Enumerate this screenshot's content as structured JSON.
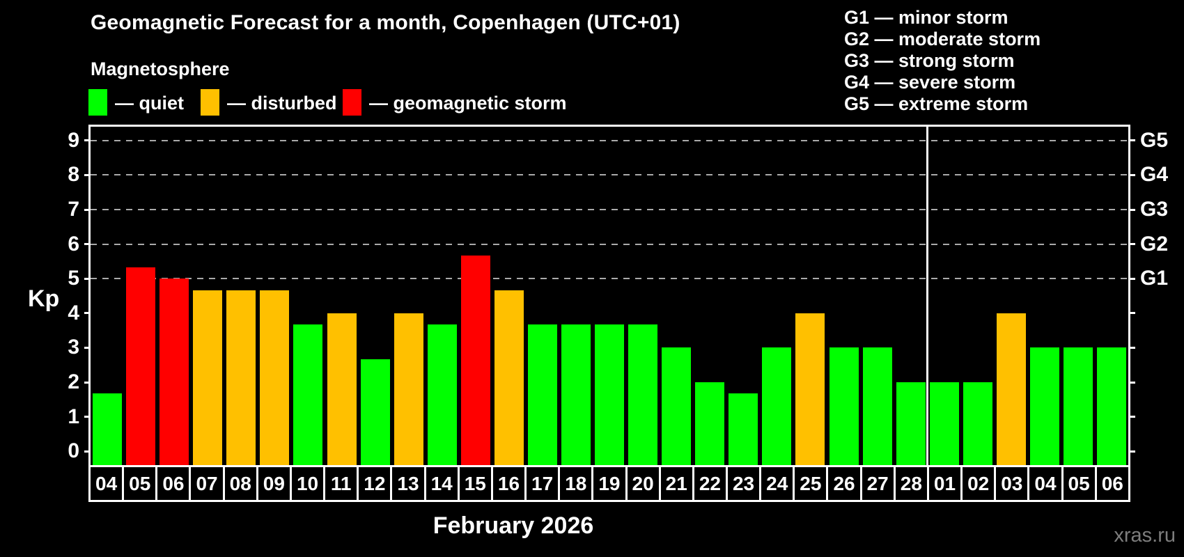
{
  "title": "Geomagnetic Forecast for a month, Copenhagen (UTC+01)",
  "subtitle": "Magnetosphere",
  "legend": {
    "quiet": "— quiet",
    "disturbed": "— disturbed",
    "storm": "— geomagnetic storm"
  },
  "g_legend": [
    "G1 — minor storm",
    "G2 — moderate storm",
    "G3 — strong storm",
    "G4 — severe storm",
    "G5 — extreme storm"
  ],
  "kp_axis_label": "Kp",
  "month_label": "February 2026",
  "watermark": "xras.ru",
  "colors": {
    "quiet": "#00ff00",
    "disturbed": "#ffc000",
    "storm": "#ff0000",
    "grid": "#aaaaaa",
    "axis": "#ffffff",
    "watermark": "#7d7d7d",
    "background": "#000000"
  },
  "chart_data": {
    "type": "bar",
    "title": "Geomagnetic Forecast for a month, Copenhagen (UTC+01)",
    "xlabel": "February 2026",
    "ylabel": "Kp",
    "ylim": [
      -0.4,
      9.4
    ],
    "y_ticks": [
      0,
      1,
      2,
      3,
      4,
      5,
      6,
      7,
      8,
      9
    ],
    "grid_levels": [
      5,
      6,
      7,
      8,
      9
    ],
    "right_axis": [
      {
        "value": 5,
        "label": "G1"
      },
      {
        "value": 6,
        "label": "G2"
      },
      {
        "value": 7,
        "label": "G3"
      },
      {
        "value": 8,
        "label": "G4"
      },
      {
        "value": 9,
        "label": "G5"
      }
    ],
    "legend_position": "top",
    "grid": "dashed, levels 5-9 only",
    "separator_index": 25,
    "categories": [
      "04",
      "05",
      "06",
      "07",
      "08",
      "09",
      "10",
      "11",
      "12",
      "13",
      "14",
      "15",
      "16",
      "17",
      "18",
      "19",
      "20",
      "21",
      "22",
      "23",
      "24",
      "25",
      "26",
      "27",
      "28",
      "01",
      "02",
      "03",
      "04",
      "05",
      "06"
    ],
    "values": [
      1.67,
      5.33,
      5.0,
      4.67,
      4.67,
      4.67,
      3.67,
      4.0,
      2.67,
      4.0,
      3.67,
      5.67,
      4.67,
      3.67,
      3.67,
      3.67,
      3.67,
      3.0,
      2.0,
      1.67,
      3.0,
      4.0,
      3.0,
      3.0,
      2.0,
      2.0,
      2.0,
      4.0,
      3.0,
      3.0,
      3.0
    ],
    "statuses": [
      "quiet",
      "storm",
      "storm",
      "disturbed",
      "disturbed",
      "disturbed",
      "quiet",
      "disturbed",
      "quiet",
      "disturbed",
      "quiet",
      "storm",
      "disturbed",
      "quiet",
      "quiet",
      "quiet",
      "quiet",
      "quiet",
      "quiet",
      "quiet",
      "quiet",
      "disturbed",
      "quiet",
      "quiet",
      "quiet",
      "quiet",
      "quiet",
      "disturbed",
      "quiet",
      "quiet",
      "quiet"
    ]
  }
}
